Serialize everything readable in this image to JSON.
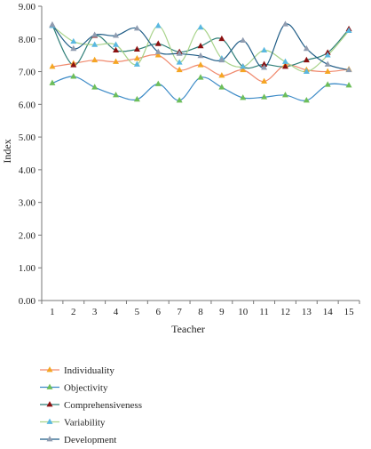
{
  "chart_data": {
    "type": "line",
    "xlabel": "Teacher",
    "ylabel": "Index",
    "ylim": [
      0,
      9
    ],
    "y_ticks": [
      "0.00",
      "1.00",
      "2.00",
      "3.00",
      "4.00",
      "5.00",
      "6.00",
      "7.00",
      "8.00",
      "9.00"
    ],
    "categories": [
      "1",
      "2",
      "3",
      "4",
      "5",
      "6",
      "7",
      "8",
      "9",
      "10",
      "11",
      "12",
      "13",
      "14",
      "15"
    ],
    "grid": false,
    "smooth": true,
    "legend_position": "bottom-left",
    "series": [
      {
        "name": "Individuality",
        "color": "#F08A6E",
        "marker_color": "#F5A623",
        "marker": "triangle",
        "values": [
          7.15,
          7.25,
          7.35,
          7.3,
          7.4,
          7.5,
          7.05,
          7.2,
          6.88,
          7.05,
          6.7,
          7.2,
          7.05,
          7.0,
          7.07
        ]
      },
      {
        "name": "Objectivity",
        "color": "#3D8BC7",
        "marker_color": "#6DBE5A",
        "marker": "triangle",
        "values": [
          6.65,
          6.85,
          6.52,
          6.28,
          6.15,
          6.62,
          6.12,
          6.82,
          6.52,
          6.2,
          6.22,
          6.28,
          6.12,
          6.6,
          6.58
        ]
      },
      {
        "name": "Comprehensiveness",
        "color": "#2E7E77",
        "marker_color": "#8B1010",
        "marker": "triangle",
        "values": [
          8.42,
          7.2,
          8.1,
          7.65,
          7.68,
          7.85,
          7.6,
          7.78,
          8.0,
          7.15,
          7.22,
          7.15,
          7.35,
          7.58,
          8.3
        ]
      },
      {
        "name": "Variability",
        "color": "#A8D38A",
        "marker_color": "#5AB8E0",
        "marker": "triangle",
        "values": [
          8.4,
          7.92,
          7.82,
          7.82,
          7.22,
          8.4,
          7.28,
          8.35,
          7.4,
          7.15,
          7.65,
          7.3,
          7.0,
          7.5,
          8.25
        ]
      },
      {
        "name": "Development",
        "color": "#1F5C86",
        "marker_color": "#8F9CB0",
        "marker": "triangle",
        "values": [
          8.43,
          7.7,
          8.12,
          8.1,
          8.32,
          7.6,
          7.55,
          7.48,
          7.35,
          7.95,
          7.12,
          8.45,
          7.7,
          7.22,
          7.05
        ]
      }
    ]
  }
}
